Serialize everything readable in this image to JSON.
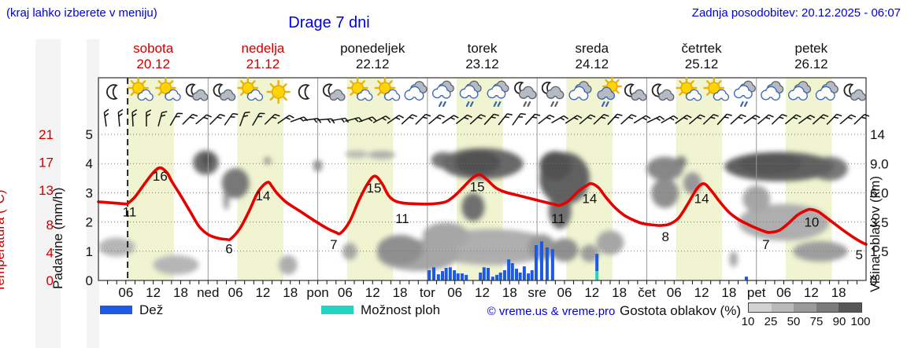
{
  "header": {
    "hint": "(kraj lahko izberete v meniju)",
    "title": "Drage 7 dni",
    "updated": "Zadnja posodobitev: 20.12.2025 - 06:07"
  },
  "colors": {
    "header_blue": "#0000dd",
    "temp_red": "#e60000",
    "day_red": "#cc0000",
    "day_black": "#111111",
    "rain_blue": "#1c59e6",
    "shower_cyan": "#20d6c3",
    "day_band_yellow": "#f0f4d1",
    "cloud_scale": [
      "#d2d2d2",
      "#b9b9b9",
      "#9b9b9b",
      "#7b7b7b",
      "#565656"
    ]
  },
  "days": [
    {
      "name": "sobota",
      "date": "20.12",
      "color": "#cc0000"
    },
    {
      "name": "nedelja",
      "date": "21.12",
      "color": "#cc0000"
    },
    {
      "name": "ponedeljek",
      "date": "22.12",
      "color": "#111111"
    },
    {
      "name": "torek",
      "date": "23.12",
      "color": "#111111"
    },
    {
      "name": "sreda",
      "date": "24.12",
      "color": "#111111"
    },
    {
      "name": "četrtek",
      "date": "25.12",
      "color": "#111111"
    },
    {
      "name": "petek",
      "date": "26.12",
      "color": "#111111"
    }
  ],
  "axes": {
    "temp": {
      "label": "Temperatura (°C)",
      "values": [
        0,
        4,
        8,
        13,
        17,
        21
      ],
      "labels": [
        "0",
        "4",
        "8",
        "13",
        "17",
        "21"
      ]
    },
    "precip": {
      "label": "Padavine (mm/h)",
      "values": [
        0,
        1,
        2,
        3,
        4,
        5
      ],
      "labels": [
        "0",
        "1",
        "2",
        "3",
        "4",
        "5"
      ]
    },
    "cloud": {
      "label": "Višina oblakov (km)",
      "values": [
        0,
        1.5,
        3.5,
        6,
        9,
        14
      ],
      "labels": [
        "0",
        "1.5",
        "3.5",
        "6.0",
        "9.0",
        "14"
      ]
    }
  },
  "legend": {
    "rain": "Dež",
    "showers": "Možnost ploh",
    "credit": "© vreme.us & vreme.pro",
    "cloud_density": "Gostota oblakov (%)",
    "cloud_scale_labels": [
      "10",
      "25",
      "50",
      "75",
      "90",
      "100"
    ]
  },
  "chart_data": {
    "type": [
      "line",
      "bar",
      "area"
    ],
    "title": "Drage 7 dni",
    "x_unit": "hours from 20.12.2025 00:00",
    "x_range": [
      0,
      168
    ],
    "now_h": 6.4,
    "daylight_bands": [
      [
        6.4,
        16.5
      ],
      [
        30.4,
        40.5
      ],
      [
        54.4,
        64.5
      ],
      [
        78.4,
        88.5
      ],
      [
        102.4,
        112.5
      ],
      [
        126.4,
        136.5
      ],
      [
        150.4,
        160.5
      ]
    ],
    "tick_labels": [
      [
        6,
        "06"
      ],
      [
        12,
        "12"
      ],
      [
        18,
        "18"
      ],
      [
        24,
        "ned"
      ],
      [
        30,
        "06"
      ],
      [
        36,
        "12"
      ],
      [
        42,
        "18"
      ],
      [
        48,
        "pon"
      ],
      [
        54,
        "06"
      ],
      [
        60,
        "12"
      ],
      [
        66,
        "18"
      ],
      [
        72,
        "tor"
      ],
      [
        78,
        "06"
      ],
      [
        84,
        "12"
      ],
      [
        90,
        "18"
      ],
      [
        96,
        "sre"
      ],
      [
        102,
        "06"
      ],
      [
        108,
        "12"
      ],
      [
        114,
        "18"
      ],
      [
        120,
        "čet"
      ],
      [
        126,
        "06"
      ],
      [
        132,
        "12"
      ],
      [
        138,
        "18"
      ],
      [
        144,
        "pet"
      ],
      [
        150,
        "06"
      ],
      [
        156,
        "12"
      ],
      [
        162,
        "18"
      ]
    ],
    "temperature": {
      "unit": "°C",
      "points": [
        [
          0,
          11.3
        ],
        [
          2,
          11.2
        ],
        [
          4,
          11.1
        ],
        [
          6,
          11.0
        ],
        [
          6.5,
          11.1
        ],
        [
          8,
          12.0
        ],
        [
          10,
          13.8
        ],
        [
          12,
          15.5
        ],
        [
          13.5,
          16.2
        ],
        [
          15,
          15.5
        ],
        [
          16,
          14.3
        ],
        [
          18,
          12.2
        ],
        [
          20,
          10.0
        ],
        [
          22,
          7.8
        ],
        [
          24,
          6.6
        ],
        [
          26,
          6.1
        ],
        [
          28,
          5.9
        ],
        [
          29,
          6.0
        ],
        [
          31,
          7.5
        ],
        [
          33,
          10.0
        ],
        [
          35,
          12.8
        ],
        [
          37,
          14.1
        ],
        [
          38,
          13.5
        ],
        [
          39,
          12.6
        ],
        [
          41,
          11.3
        ],
        [
          44,
          10.0
        ],
        [
          47,
          8.7
        ],
        [
          50,
          7.5
        ],
        [
          52,
          6.9
        ],
        [
          53,
          6.8
        ],
        [
          55,
          8.5
        ],
        [
          57,
          11.5
        ],
        [
          59,
          14.0
        ],
        [
          60.5,
          15.0
        ],
        [
          62,
          14.0
        ],
        [
          63.5,
          12.2
        ],
        [
          65,
          11.4
        ],
        [
          67,
          11.1
        ],
        [
          70,
          11.0
        ],
        [
          73,
          11.0
        ],
        [
          76,
          11.3
        ],
        [
          78,
          12.2
        ],
        [
          80,
          13.5
        ],
        [
          82,
          14.8
        ],
        [
          83.5,
          15.2
        ],
        [
          85,
          14.5
        ],
        [
          87,
          13.3
        ],
        [
          89,
          12.7
        ],
        [
          92,
          12.2
        ],
        [
          95,
          11.7
        ],
        [
          98,
          11.2
        ],
        [
          100,
          10.9
        ],
        [
          101,
          10.8
        ],
        [
          103,
          11.5
        ],
        [
          105,
          12.8
        ],
        [
          107,
          13.7
        ],
        [
          108,
          13.9
        ],
        [
          109.5,
          13.3
        ],
        [
          111,
          12.0
        ],
        [
          113,
          10.5
        ],
        [
          115,
          9.4
        ],
        [
          117,
          8.7
        ],
        [
          119,
          8.2
        ],
        [
          121,
          8.0
        ],
        [
          123,
          7.9
        ],
        [
          125,
          8.1
        ],
        [
          127,
          9.0
        ],
        [
          129,
          11.0
        ],
        [
          131,
          13.2
        ],
        [
          132.5,
          13.9
        ],
        [
          134,
          13.0
        ],
        [
          136,
          11.3
        ],
        [
          138,
          9.8
        ],
        [
          140,
          8.8
        ],
        [
          142,
          8.1
        ],
        [
          144,
          7.5
        ],
        [
          146,
          7.0
        ],
        [
          147,
          6.9
        ],
        [
          149,
          7.2
        ],
        [
          151,
          8.2
        ],
        [
          153,
          9.4
        ],
        [
          155,
          10.1
        ],
        [
          156,
          10.2
        ],
        [
          157.5,
          9.9
        ],
        [
          159,
          9.2
        ],
        [
          161,
          8.2
        ],
        [
          163,
          7.2
        ],
        [
          165,
          6.3
        ],
        [
          167,
          5.5
        ],
        [
          168,
          5.2
        ]
      ],
      "value_labels": [
        [
          6.8,
          9.9,
          "11"
        ],
        [
          13.5,
          15.0,
          "16"
        ],
        [
          28.6,
          4.6,
          "6"
        ],
        [
          36,
          12.2,
          "14"
        ],
        [
          51.5,
          5.2,
          "7"
        ],
        [
          60.3,
          13.3,
          "15"
        ],
        [
          66.5,
          8.9,
          "11"
        ],
        [
          82.9,
          13.5,
          "15"
        ],
        [
          100.6,
          8.9,
          "11"
        ],
        [
          107.5,
          11.8,
          "14"
        ],
        [
          124.1,
          6.3,
          "8"
        ],
        [
          132,
          11.8,
          "14"
        ],
        [
          146.1,
          5.2,
          "7"
        ],
        [
          156.1,
          8.4,
          "10"
        ],
        [
          166.5,
          3.7,
          "5"
        ]
      ]
    },
    "rain_bars_mm_h": [
      [
        72.4,
        0.35
      ],
      [
        73.4,
        0.45
      ],
      [
        74.4,
        0.21
      ],
      [
        75.3,
        0.32
      ],
      [
        76.1,
        0.43
      ],
      [
        77,
        0.45
      ],
      [
        77.9,
        0.35
      ],
      [
        78.7,
        0.24
      ],
      [
        79.6,
        0.24
      ],
      [
        80.5,
        0.19
      ],
      [
        83.6,
        0.27
      ],
      [
        84.4,
        0.45
      ],
      [
        85.3,
        0.43
      ],
      [
        86.3,
        0.13
      ],
      [
        87.2,
        0.19
      ],
      [
        88,
        0.27
      ],
      [
        88.9,
        0.35
      ],
      [
        89.8,
        0.72
      ],
      [
        90.6,
        0.59
      ],
      [
        91.5,
        0.4
      ],
      [
        92.3,
        0.27
      ],
      [
        93.2,
        0.48
      ],
      [
        94.1,
        0.24
      ],
      [
        94.9,
        0.35
      ],
      [
        95.8,
        1.21
      ],
      [
        97,
        1.34
      ],
      [
        98.2,
        1.13
      ],
      [
        99.4,
        1.07
      ],
      [
        141.8,
        0.13
      ]
    ],
    "shower_bars_mm_h": [
      [
        109.1,
        0.91,
        0.32
      ]
    ],
    "cloud_blobs_h_km_rh_rkm_pct": [
      [
        4,
        1.8,
        4,
        0.6,
        30
      ],
      [
        17,
        0.8,
        5,
        0.5,
        30
      ],
      [
        41.5,
        0.8,
        2,
        0.5,
        35
      ],
      [
        23.5,
        9.2,
        2.8,
        1.6,
        78
      ],
      [
        23.8,
        9.6,
        1.2,
        1.0,
        95
      ],
      [
        30,
        7.0,
        3,
        1.5,
        70
      ],
      [
        28,
        5.5,
        0.7,
        1.0,
        45
      ],
      [
        37,
        9.5,
        0.8,
        0.6,
        50
      ],
      [
        48,
        8.8,
        1.0,
        0.7,
        55
      ],
      [
        55,
        1.5,
        1.6,
        0.5,
        40
      ],
      [
        56.5,
        10.6,
        2.5,
        0.6,
        30
      ],
      [
        62,
        10.5,
        3,
        0.7,
        35
      ],
      [
        66,
        1.6,
        5,
        0.9,
        55
      ],
      [
        70,
        1.3,
        9,
        0.9,
        40
      ],
      [
        76,
        2.6,
        5,
        0.9,
        40
      ],
      [
        75.5,
        9.6,
        2.7,
        1.2,
        70
      ],
      [
        84,
        9.0,
        9,
        2.0,
        80
      ],
      [
        83,
        9.2,
        5,
        1.6,
        95
      ],
      [
        82,
        4.8,
        2.5,
        1.2,
        75
      ],
      [
        86,
        1.8,
        14,
        1.1,
        35
      ],
      [
        97,
        1.8,
        3,
        0.8,
        50
      ],
      [
        102,
        7.5,
        5.5,
        2.8,
        85
      ],
      [
        100,
        8.8,
        3.5,
        1.8,
        95
      ],
      [
        101,
        4.5,
        2.5,
        1.5,
        75
      ],
      [
        102,
        1.6,
        3,
        0.7,
        55
      ],
      [
        107.5,
        1.4,
        2,
        0.5,
        45
      ],
      [
        112,
        2.1,
        3,
        0.8,
        40
      ],
      [
        124,
        8.5,
        4,
        1.4,
        60
      ],
      [
        124,
        6.0,
        3,
        1.4,
        55
      ],
      [
        130,
        7.0,
        2,
        1.1,
        50
      ],
      [
        127.5,
        9.3,
        1.2,
        0.8,
        65
      ],
      [
        144,
        5.5,
        3,
        1.2,
        40
      ],
      [
        149,
        8.7,
        12,
        1.8,
        85
      ],
      [
        147,
        9.0,
        7,
        1.4,
        92
      ],
      [
        160,
        8.5,
        4,
        1.4,
        70
      ],
      [
        150,
        3.5,
        10,
        1.4,
        35
      ],
      [
        158,
        1.5,
        6,
        0.6,
        45
      ],
      [
        139,
        1.1,
        0.9,
        0.4,
        40
      ]
    ],
    "weather_icons": [
      "moon",
      "sun-cloud",
      "sun-cloud",
      "moon-cloud",
      "moon-cloud",
      "sun-cloud",
      "sun",
      "moon",
      "moon-cloud",
      "sun-cloud",
      "sun-cloud",
      "clouds",
      "cloud-rain",
      "cloud-rain",
      "cloud-rain",
      "moon-rain",
      "moon-rain",
      "clouds",
      "sun-rain",
      "moon-cloud",
      "moon-cloud",
      "sun-cloud",
      "sun-cloud",
      "cloud-rain",
      "clouds",
      "clouds",
      "clouds",
      "moon-cloud"
    ],
    "weather_icons_start_h": 3.4,
    "weather_icons_step_h": 6,
    "wind_barbs": {
      "start_h": 1.5,
      "step_h": 3,
      "angles_deg": [
        -8,
        -5,
        -3,
        0,
        15,
        30,
        45,
        50,
        45,
        35,
        20,
        30,
        45,
        55,
        70,
        82,
        85,
        80,
        75,
        70,
        62,
        55,
        48,
        45,
        50,
        55,
        52,
        48,
        42,
        38,
        35,
        42,
        52,
        60,
        56,
        50,
        46,
        42,
        48,
        58,
        64,
        60,
        54,
        50,
        46,
        42,
        48,
        54,
        50,
        46,
        50,
        54,
        48,
        44,
        50,
        46
      ]
    }
  }
}
